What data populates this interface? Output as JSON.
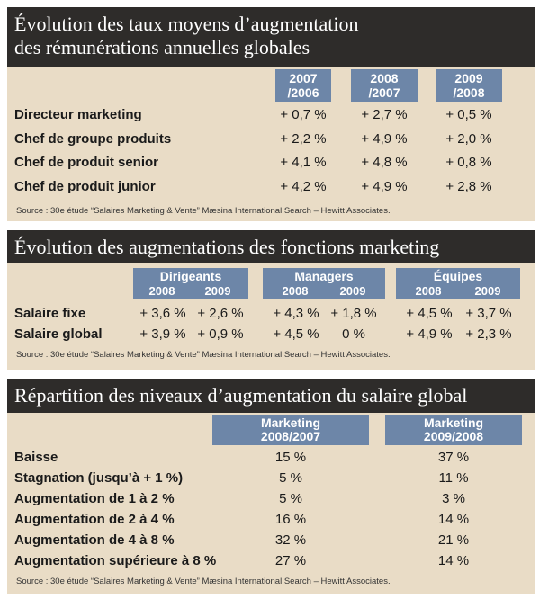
{
  "colors": {
    "title_bg": "#2e2c2a",
    "panel_bg": "#e9dcc6",
    "header_bg": "#6d86a8"
  },
  "table1": {
    "title_line1": "Évolution des taux moyens d’augmentation",
    "title_line2": "des rémunérations annuelles globales",
    "columns": [
      {
        "line1": "2007",
        "line2": "/2006"
      },
      {
        "line1": "2008",
        "line2": "/2007"
      },
      {
        "line1": "2009",
        "line2": "/2008"
      }
    ],
    "rows": [
      {
        "label": "Directeur marketing",
        "values": [
          "+ 0,7 %",
          "+ 2,7 %",
          "+ 0,5 %"
        ]
      },
      {
        "label": "Chef de groupe produits",
        "values": [
          "+ 2,2 %",
          "+ 4,9 %",
          "+ 2,0 %"
        ]
      },
      {
        "label": "Chef de produit senior",
        "values": [
          "+ 4,1 %",
          "+ 4,8 %",
          "+ 0,8 %"
        ]
      },
      {
        "label": "Chef de produit junior",
        "values": [
          "+ 4,2 %",
          "+ 4,9 %",
          "+ 2,8 %"
        ]
      }
    ],
    "source": "Source : 30e étude “Salaires Marketing & Vente” Mæsina International Search – Hewitt Associates."
  },
  "table2": {
    "title": "Évolution des augmentations des fonctions marketing",
    "groups": [
      {
        "name": "Dirigeants",
        "years": [
          "2008",
          "2009"
        ]
      },
      {
        "name": "Managers",
        "years": [
          "2008",
          "2009"
        ]
      },
      {
        "name": "Équipes",
        "years": [
          "2008",
          "2009"
        ]
      }
    ],
    "rows": [
      {
        "label": "Salaire fixe",
        "values": [
          "+ 3,6 %",
          "+ 2,6 %",
          "+ 4,3 %",
          "+ 1,8 %",
          "+ 4,5 %",
          "+ 3,7 %"
        ]
      },
      {
        "label": "Salaire global",
        "values": [
          "+ 3,9 %",
          "+ 0,9 %",
          "+ 4,5 %",
          "0 %",
          "+ 4,9 %",
          "+ 2,3 %"
        ]
      }
    ],
    "source": "Source : 30e étude “Salaires Marketing & Vente” Mæsina International Search – Hewitt Associates."
  },
  "table3": {
    "title": "Répartition des niveaux d’augmentation du salaire global",
    "columns": [
      {
        "line1": "Marketing",
        "line2": "2008/2007"
      },
      {
        "line1": "Marketing",
        "line2": "2009/2008"
      }
    ],
    "rows": [
      {
        "label": "Baisse",
        "values": [
          "15 %",
          "37 %"
        ]
      },
      {
        "label": "Stagnation (jusqu’à + 1 %)",
        "values": [
          "5 %",
          "11 %"
        ]
      },
      {
        "label": "Augmentation de 1 à 2 %",
        "values": [
          "5 %",
          "3 %"
        ]
      },
      {
        "label": "Augmentation de 2 à 4 %",
        "values": [
          "16 %",
          "14 %"
        ]
      },
      {
        "label": "Augmentation de 4 à 8 %",
        "values": [
          "32 %",
          "21 %"
        ]
      },
      {
        "label": "Augmentation supérieure à 8 %",
        "values": [
          "27 %",
          "14 %"
        ]
      }
    ],
    "source": "Source : 30e étude “Salaires Marketing & Vente” Mæsina International Search – Hewitt Associates."
  }
}
